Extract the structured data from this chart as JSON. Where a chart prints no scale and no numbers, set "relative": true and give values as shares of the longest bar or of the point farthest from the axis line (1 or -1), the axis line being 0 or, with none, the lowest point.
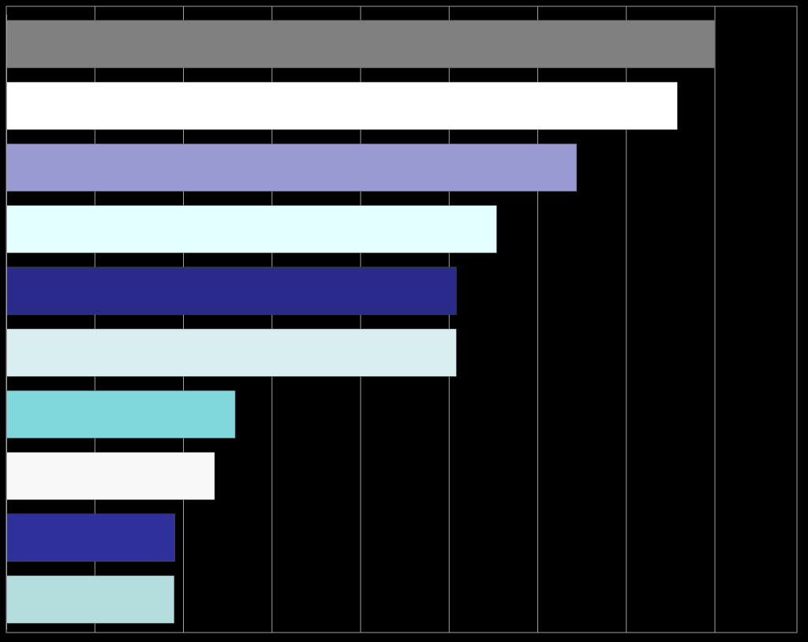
{
  "chart_data": {
    "type": "bar",
    "orientation": "horizontal",
    "relative": true,
    "grid": "x",
    "categories": [
      null,
      null,
      null,
      null,
      null,
      null,
      null,
      null,
      null,
      null
    ],
    "values": [
      1,
      0.947,
      0.805,
      0.692,
      0.635,
      0.635,
      0.323,
      0.294,
      0.238,
      0.237
    ],
    "colors": [
      "#808080",
      "#ffffff",
      "#9a9ad2",
      "#e4ffff",
      "#2a2a8c",
      "#d8eef0",
      "#80d8dc",
      "#f8f8f8",
      "#30309c",
      "#b4dede"
    ]
  }
}
